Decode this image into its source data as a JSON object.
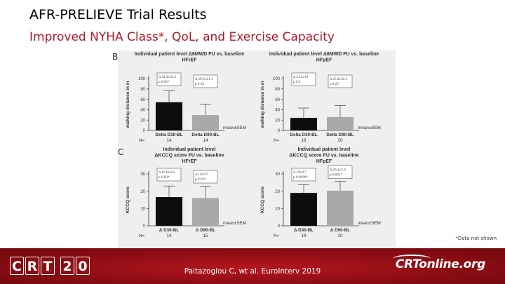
{
  "slide": {
    "title": "AFR-PRELIEVE Trial Results",
    "subtitle": "Improved NYHA Class*, QoL, and Exercise Capacity",
    "panel_b": "B",
    "panel_c": "C",
    "footnote": "*Data not shown",
    "citation": "Paitazoglou C, wt al. EuroInterv 2019",
    "logo_left": [
      "C",
      "R",
      "T",
      "2",
      "0"
    ],
    "logo_right": "CRTonline.org"
  },
  "colors": {
    "bar_dark": "#0d0d0d",
    "bar_light": "#a9a9a9",
    "title_red": "#b01a24",
    "footer_red": "#9a1018"
  },
  "chart_data": [
    {
      "type": "bar",
      "title": "Individual patient level Δ6MWD FU vs. baseline",
      "subtitle": "HFrEF",
      "ylabel": "walking distance in m",
      "ylim": [
        0,
        100
      ],
      "yticks": [
        0,
        20,
        40,
        60,
        80,
        100
      ],
      "categories": [
        "Delta D30-BL",
        "Delta D90-BL"
      ],
      "values": [
        54.4,
        29.6
      ],
      "errors": [
        22.2,
        21.1
      ],
      "annotations": [
        "Δ 54.4±22.2\np 0.02*",
        "Δ 29.6±21.1\np 0.18"
      ],
      "n_label": "N=",
      "n": [
        "14",
        "14"
      ],
      "stat_label": "mean±SEM"
    },
    {
      "type": "bar",
      "title": "Individual patient level Δ6MWD FU vs. baseline",
      "subtitle": "HFpEF",
      "ylabel": "walking distance in m",
      "ylim": [
        0,
        100
      ],
      "yticks": [
        0,
        20,
        40,
        60,
        80,
        100
      ],
      "categories": [
        "Delta D30-BL",
        "Delta D90-BL"
      ],
      "values": [
        24.2,
        25.9
      ],
      "errors": [
        19,
        22.1
      ],
      "annotations": [
        "Δ 24.2±19\np 0.2",
        "Δ 25.9±22.1\np 0.25"
      ],
      "n_label": "N=",
      "n": [
        "19",
        "20"
      ],
      "stat_label": "mean±SEM"
    },
    {
      "type": "bar",
      "title": "Individual patient level",
      "subtitle": "ΔKCCQ score FU vs. baseline\nHFrEF",
      "ylabel": "KCCQ score",
      "ylim": [
        0,
        30
      ],
      "yticks": [
        0,
        10,
        20,
        30
      ],
      "categories": [
        "Δ D30-BL",
        "Δ D90-BL"
      ],
      "values": [
        16.6,
        16
      ],
      "errors": [
        6.4,
        6.9
      ],
      "annotations": [
        "Δ 16.6±6.4\np 0.02*",
        "Δ 16±6.9\np 0.03*"
      ],
      "n_label": "N=",
      "n": [
        "14",
        "15"
      ],
      "stat_label": "mean±SEM"
    },
    {
      "type": "bar",
      "title": "Individual patient level",
      "subtitle": "ΔKCCQ score FU vs. baseline\nHFpEF",
      "ylabel": "KCCQ score",
      "ylim": [
        0,
        30
      ],
      "yticks": [
        0,
        10,
        20,
        30
      ],
      "categories": [
        "Δ D30-BL",
        "Δ D90-BL"
      ],
      "values": [
        19,
        20.3
      ],
      "errors": [
        4.7,
        5.4
      ],
      "annotations": [
        "Δ 19±4.7\np 0.0009*",
        "Δ 20.3±5.4\np 0.001*"
      ],
      "n_label": "N=",
      "n": [
        "19",
        "20"
      ],
      "stat_label": "mean±SEM"
    }
  ]
}
